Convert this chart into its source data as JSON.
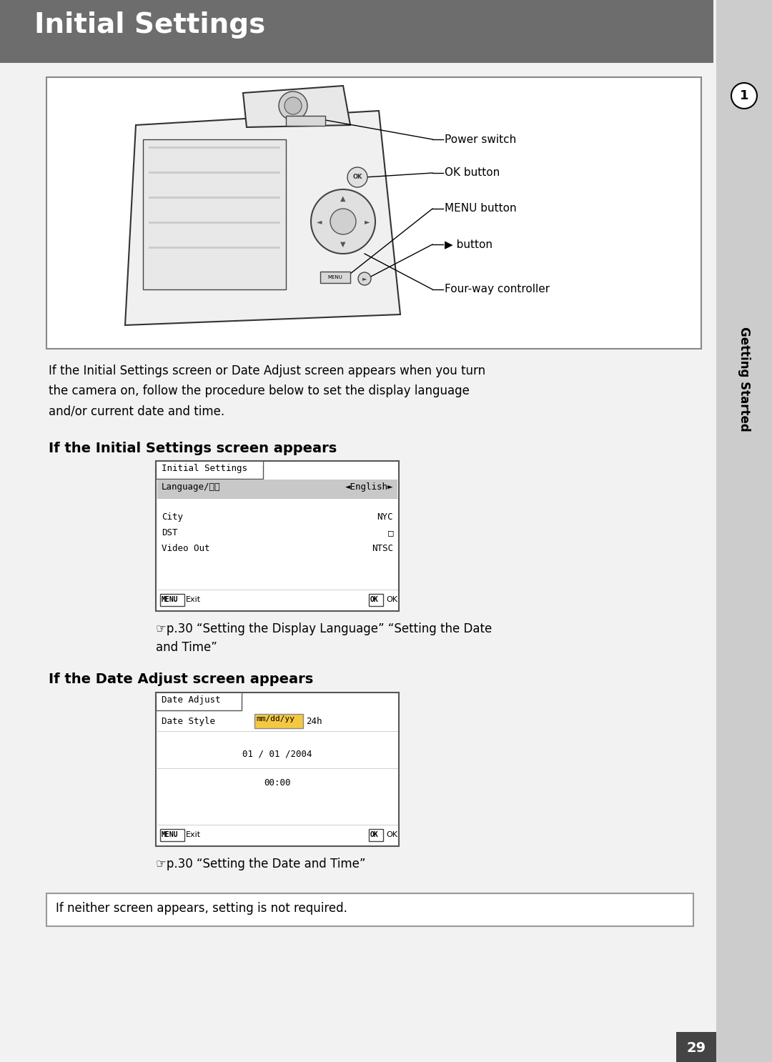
{
  "title": "Initial Settings",
  "title_bg_color": "#6d6d6d",
  "title_text_color": "#ffffff",
  "page_bg_color": "#f2f2f2",
  "sidebar_color": "#cccccc",
  "page_number": "29",
  "sidebar_label": "Getting Started",
  "camera_labels": [
    "Power switch",
    "OK button",
    "MENU button",
    "▶ button",
    "Four-way controller"
  ],
  "intro_line1": "If the Initial Settings screen or Date Adjust screen appears when you turn",
  "intro_line2": "the camera on, follow the procedure below to set the display language",
  "intro_line3": "and/or current date and time.",
  "sec1_heading": "If the Initial Settings screen appears",
  "sec1_title": "Initial Settings",
  "sec1_lang_label": "Language/言語",
  "sec1_lang_value": "◄English►",
  "sec1_city": "City",
  "sec1_city_val": "NYC",
  "sec1_dst": "DST",
  "sec1_dst_val": "□",
  "sec1_video": "Video Out",
  "sec1_video_val": "NTSC",
  "sec1_ref1": "☞p.30 “Setting the Display Language” “Setting the Date",
  "sec1_ref2": "and Time”",
  "sec2_heading": "If the Date Adjust screen appears",
  "sec2_title": "Date Adjust",
  "sec2_dstyle": "Date Style",
  "sec2_mmddyy": "mm/dd/yy",
  "sec2_24h": "24h",
  "sec2_date": "01 / 01 /2004",
  "sec2_time": "00:00",
  "sec2_ref": "☞p.30 “Setting the Date and Time”",
  "bottom_note": "If neither screen appears, setting is not required.",
  "menu_label": "MENU",
  "exit_label": "Exit",
  "ok_box": "OK",
  "ok_label": "OK"
}
